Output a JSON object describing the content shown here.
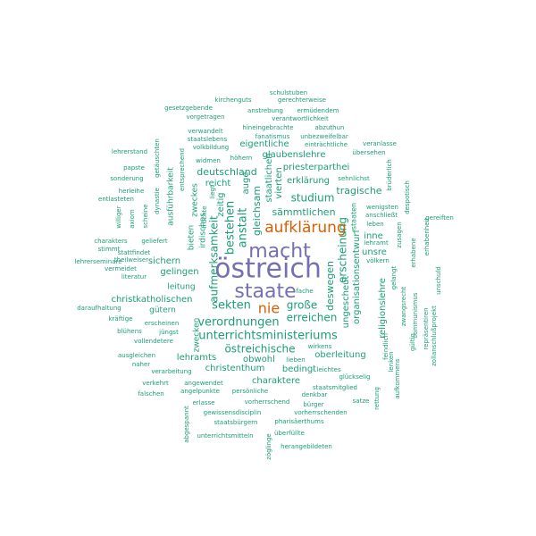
{
  "colors": {
    "background": "#ffffff",
    "tier1": "#7570b3",
    "tier2": "#d95f02",
    "tier3": "#1b9e77"
  },
  "words": [
    {
      "text": "östreich",
      "tier": 1,
      "weight": 100
    },
    {
      "text": "macht",
      "tier": 1,
      "weight": 80
    },
    {
      "text": "staate",
      "tier": 1,
      "weight": 78
    },
    {
      "text": "aufklärung",
      "tier": 2,
      "weight": 60
    },
    {
      "text": "nie",
      "tier": 2,
      "weight": 58
    },
    {
      "text": "unterrichtsministeriums",
      "tier": 3,
      "weight": 42
    },
    {
      "text": "verordnungen",
      "tier": 3,
      "weight": 40
    },
    {
      "text": "sekten",
      "tier": 3,
      "weight": 40
    },
    {
      "text": "anstalt",
      "tier": 3,
      "weight": 38
    },
    {
      "text": "bestehen",
      "tier": 3,
      "weight": 38
    },
    {
      "text": "östreichische",
      "tier": 3,
      "weight": 38
    },
    {
      "text": "aufmerksamkeit",
      "tier": 3,
      "weight": 38
    },
    {
      "text": "erreichen",
      "tier": 3,
      "weight": 36
    },
    {
      "text": "erscheinung",
      "tier": 3,
      "weight": 36
    },
    {
      "text": "große",
      "tier": 3,
      "weight": 34
    },
    {
      "text": "studium",
      "tier": 3,
      "weight": 34
    },
    {
      "text": "sämmtlichen",
      "tier": 3,
      "weight": 32
    },
    {
      "text": "deswegen",
      "tier": 3,
      "weight": 32
    },
    {
      "text": "gleichsam",
      "tier": 3,
      "weight": 32
    },
    {
      "text": "deutschland",
      "tier": 3,
      "weight": 32
    },
    {
      "text": "tragische",
      "tier": 3,
      "weight": 32
    },
    {
      "text": "christkatholischen",
      "tier": 3,
      "weight": 30
    },
    {
      "text": "christenthum",
      "tier": 3,
      "weight": 30
    },
    {
      "text": "priesterparthei",
      "tier": 3,
      "weight": 30
    },
    {
      "text": "glaubenslehre",
      "tier": 3,
      "weight": 30
    },
    {
      "text": "charaktere",
      "tier": 3,
      "weight": 30
    },
    {
      "text": "organisationsentwurf",
      "tier": 3,
      "weight": 30
    },
    {
      "text": "ungescheut",
      "tier": 3,
      "weight": 30
    },
    {
      "text": "erklärung",
      "tier": 3,
      "weight": 30
    },
    {
      "text": "oberleitung",
      "tier": 3,
      "weight": 30
    },
    {
      "text": "lehramts",
      "tier": 3,
      "weight": 30
    },
    {
      "text": "bedingt",
      "tier": 3,
      "weight": 28
    },
    {
      "text": "religionslehre",
      "tier": 3,
      "weight": 28
    },
    {
      "text": "vierten",
      "tier": 3,
      "weight": 28
    },
    {
      "text": "zeitig",
      "tier": 3,
      "weight": 28
    },
    {
      "text": "reicht",
      "tier": 3,
      "weight": 28
    },
    {
      "text": "auge",
      "tier": 3,
      "weight": 28
    },
    {
      "text": "staatlichen",
      "tier": 3,
      "weight": 28
    },
    {
      "text": "eigentliche",
      "tier": 3,
      "weight": 28
    },
    {
      "text": "sichern",
      "tier": 3,
      "weight": 28
    },
    {
      "text": "gelingen",
      "tier": 3,
      "weight": 28
    },
    {
      "text": "obwohl",
      "tier": 3,
      "weight": 28
    },
    {
      "text": "unsre",
      "tier": 3,
      "weight": 28
    },
    {
      "text": "inne",
      "tier": 3,
      "weight": 28
    },
    {
      "text": "leitung",
      "tier": 3,
      "weight": 26
    },
    {
      "text": "gütern",
      "tier": 3,
      "weight": 26
    },
    {
      "text": "zwecken",
      "tier": 3,
      "weight": 26
    },
    {
      "text": "bieten",
      "tier": 3,
      "weight": 26
    },
    {
      "text": "irdisches",
      "tier": 3,
      "weight": 26
    },
    {
      "text": "ausführbarkeit",
      "tier": 3,
      "weight": 26
    },
    {
      "text": "zweckes",
      "tier": 3,
      "weight": 26
    },
    {
      "text": "staaten",
      "tier": 3,
      "weight": 24
    },
    {
      "text": "schulstuben",
      "tier": 3,
      "weight": 16
    },
    {
      "text": "kirchenguts",
      "tier": 3,
      "weight": 16
    },
    {
      "text": "gerechterweise",
      "tier": 3,
      "weight": 16
    },
    {
      "text": "gesetzgebende",
      "tier": 3,
      "weight": 16
    },
    {
      "text": "anstrebung",
      "tier": 3,
      "weight": 16
    },
    {
      "text": "ermüdendem",
      "tier": 3,
      "weight": 16
    },
    {
      "text": "vorgetragen",
      "tier": 3,
      "weight": 16
    },
    {
      "text": "verantwortlichkeit",
      "tier": 3,
      "weight": 16
    },
    {
      "text": "hineingebrachte",
      "tier": 3,
      "weight": 16
    },
    {
      "text": "abzuthun",
      "tier": 3,
      "weight": 16
    },
    {
      "text": "verwandelt",
      "tier": 3,
      "weight": 16
    },
    {
      "text": "fanatismus",
      "tier": 3,
      "weight": 16
    },
    {
      "text": "unbezweifelbar",
      "tier": 3,
      "weight": 16
    },
    {
      "text": "staatslebens",
      "tier": 3,
      "weight": 16
    },
    {
      "text": "volkbildung",
      "tier": 3,
      "weight": 16
    },
    {
      "text": "einträchtliche",
      "tier": 3,
      "weight": 16
    },
    {
      "text": "veranlasse",
      "tier": 3,
      "weight": 16
    },
    {
      "text": "lehrerstand",
      "tier": 3,
      "weight": 16
    },
    {
      "text": "übersehen",
      "tier": 3,
      "weight": 16
    },
    {
      "text": "widmen",
      "tier": 3,
      "weight": 16
    },
    {
      "text": "höhern",
      "tier": 3,
      "weight": 16
    },
    {
      "text": "papste",
      "tier": 3,
      "weight": 16
    },
    {
      "text": "sehnlichst",
      "tier": 3,
      "weight": 16
    },
    {
      "text": "sonderung",
      "tier": 3,
      "weight": 16
    },
    {
      "text": "herleihe",
      "tier": 3,
      "weight": 16
    },
    {
      "text": "entlasteten",
      "tier": 3,
      "weight": 16
    },
    {
      "text": "wenigsten",
      "tier": 3,
      "weight": 16
    },
    {
      "text": "anschließt",
      "tier": 3,
      "weight": 16
    },
    {
      "text": "gereiften",
      "tier": 3,
      "weight": 16
    },
    {
      "text": "leben",
      "tier": 3,
      "weight": 16
    },
    {
      "text": "charakters",
      "tier": 3,
      "weight": 16
    },
    {
      "text": "geliefert",
      "tier": 3,
      "weight": 16
    },
    {
      "text": "lehramt",
      "tier": 3,
      "weight": 16
    },
    {
      "text": "stimmt",
      "tier": 3,
      "weight": 16
    },
    {
      "text": "völkern",
      "tier": 3,
      "weight": 16
    },
    {
      "text": "stattfindet",
      "tier": 3,
      "weight": 16
    },
    {
      "text": "lehrerseminare",
      "tier": 3,
      "weight": 16
    },
    {
      "text": "theilweiser",
      "tier": 3,
      "weight": 16
    },
    {
      "text": "vermeidet",
      "tier": 3,
      "weight": 16
    },
    {
      "text": "literatur",
      "tier": 3,
      "weight": 16
    },
    {
      "text": "fache",
      "tier": 3,
      "weight": 16
    },
    {
      "text": "daraufhaltung",
      "tier": 3,
      "weight": 16
    },
    {
      "text": "kräftige",
      "tier": 3,
      "weight": 16
    },
    {
      "text": "erscheinen",
      "tier": 3,
      "weight": 16
    },
    {
      "text": "blühens",
      "tier": 3,
      "weight": 16
    },
    {
      "text": "jüngst",
      "tier": 3,
      "weight": 16
    },
    {
      "text": "vollendetere",
      "tier": 3,
      "weight": 16
    },
    {
      "text": "ausgleichen",
      "tier": 3,
      "weight": 16
    },
    {
      "text": "wirkens",
      "tier": 3,
      "weight": 16
    },
    {
      "text": "naher",
      "tier": 3,
      "weight": 16
    },
    {
      "text": "lieben",
      "tier": 3,
      "weight": 16
    },
    {
      "text": "leichtes",
      "tier": 3,
      "weight": 16
    },
    {
      "text": "verarbeitung",
      "tier": 3,
      "weight": 16
    },
    {
      "text": "glückselig",
      "tier": 3,
      "weight": 16
    },
    {
      "text": "verkehrt",
      "tier": 3,
      "weight": 16
    },
    {
      "text": "angewendet",
      "tier": 3,
      "weight": 16
    },
    {
      "text": "falschen",
      "tier": 3,
      "weight": 16
    },
    {
      "text": "angelpunkte",
      "tier": 3,
      "weight": 16
    },
    {
      "text": "persönliche",
      "tier": 3,
      "weight": 16
    },
    {
      "text": "staatsmitglied",
      "tier": 3,
      "weight": 16
    },
    {
      "text": "erlasse",
      "tier": 3,
      "weight": 16
    },
    {
      "text": "vorherrschend",
      "tier": 3,
      "weight": 16
    },
    {
      "text": "denkbar",
      "tier": 3,
      "weight": 16
    },
    {
      "text": "satze",
      "tier": 3,
      "weight": 16
    },
    {
      "text": "bürger",
      "tier": 3,
      "weight": 16
    },
    {
      "text": "gewissensdisciplin",
      "tier": 3,
      "weight": 16
    },
    {
      "text": "vorherrschenden",
      "tier": 3,
      "weight": 16
    },
    {
      "text": "staatsbürgern",
      "tier": 3,
      "weight": 16
    },
    {
      "text": "pharisäerthums",
      "tier": 3,
      "weight": 16
    },
    {
      "text": "überfüllte",
      "tier": 3,
      "weight": 16
    },
    {
      "text": "unterrichtsmitteln",
      "tier": 3,
      "weight": 16
    },
    {
      "text": "herangebildeten",
      "tier": 3,
      "weight": 16
    },
    {
      "text": "zöglinge",
      "tier": 3,
      "weight": 16
    },
    {
      "text": "abgespannt",
      "tier": 3,
      "weight": 16
    },
    {
      "text": "getäuschten",
      "tier": 3,
      "weight": 16
    },
    {
      "text": "entsprechend",
      "tier": 3,
      "weight": 16
    },
    {
      "text": "dynastie",
      "tier": 3,
      "weight": 16
    },
    {
      "text": "scheine",
      "tier": 3,
      "weight": 16
    },
    {
      "text": "axiom",
      "tier": 3,
      "weight": 16
    },
    {
      "text": "williger",
      "tier": 3,
      "weight": 16
    },
    {
      "text": "früchte",
      "tier": 3,
      "weight": 16
    },
    {
      "text": "liegt",
      "tier": 3,
      "weight": 16
    },
    {
      "text": "brüderlich",
      "tier": 3,
      "weight": 16
    },
    {
      "text": "despotisch",
      "tier": 3,
      "weight": 16
    },
    {
      "text": "zusagen",
      "tier": 3,
      "weight": 16
    },
    {
      "text": "erhabenheit",
      "tier": 3,
      "weight": 16
    },
    {
      "text": "erhabene",
      "tier": 3,
      "weight": 16
    },
    {
      "text": "unschuld",
      "tier": 3,
      "weight": 16
    },
    {
      "text": "gelangt",
      "tier": 3,
      "weight": 16
    },
    {
      "text": "zwangsrecht",
      "tier": 3,
      "weight": 16
    },
    {
      "text": "communismus",
      "tier": 3,
      "weight": 16
    },
    {
      "text": "repräsentiren",
      "tier": 3,
      "weight": 16
    },
    {
      "text": "zollanschlußprojekt",
      "tier": 3,
      "weight": 16
    },
    {
      "text": "gültig",
      "tier": 3,
      "weight": 16
    },
    {
      "text": "feindlich",
      "tier": 3,
      "weight": 16
    },
    {
      "text": "lenken",
      "tier": 3,
      "weight": 16
    },
    {
      "text": "aufkommens",
      "tier": 3,
      "weight": 16
    },
    {
      "text": "rettung",
      "tier": 3,
      "weight": 16
    }
  ]
}
